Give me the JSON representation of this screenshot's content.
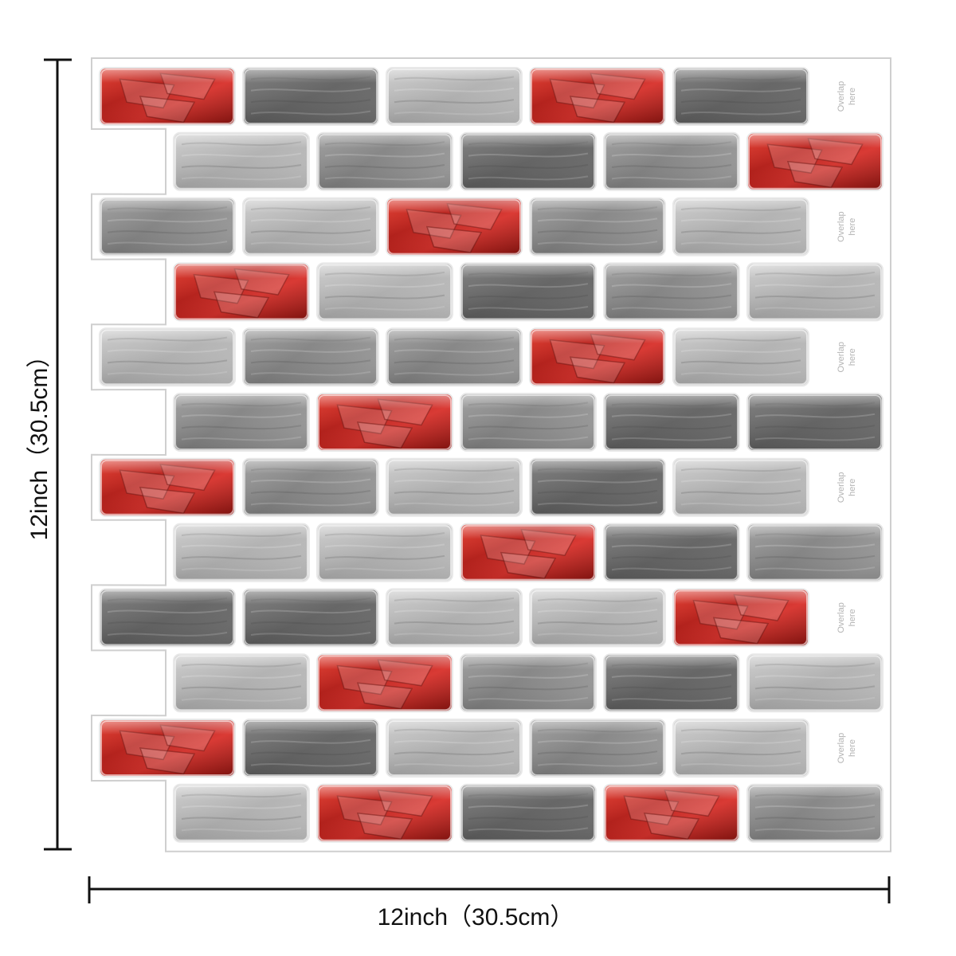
{
  "dimensions": {
    "height_label": "12inch（30.5cm）",
    "width_label": "12inch（30.5cm）"
  },
  "overlap_note": {
    "line1": "Overlap",
    "line2": "here"
  },
  "colors": {
    "red": "#c8261c",
    "red_dark": "#8e1410",
    "gray_dark": "#6d6d6d",
    "gray_mid": "#8e8e8e",
    "gray_light": "#b9b9b9",
    "sheet_outline": "#cfcfcf",
    "overlap_text": "#b4b4b4"
  },
  "tile_rows": [
    [
      "red",
      "dark",
      "light",
      "red",
      "dark"
    ],
    [
      "light",
      "mid",
      "dark",
      "mid",
      "red"
    ],
    [
      "mid",
      "light",
      "red",
      "mid",
      "light"
    ],
    [
      "red",
      "light",
      "dark",
      "mid",
      "light"
    ],
    [
      "light",
      "mid",
      "mid",
      "red",
      "light"
    ],
    [
      "mid",
      "red",
      "mid",
      "dark",
      "dark"
    ],
    [
      "red",
      "mid",
      "light",
      "dark",
      "light"
    ],
    [
      "light",
      "light",
      "red",
      "dark",
      "mid"
    ],
    [
      "dark",
      "dark",
      "light",
      "light",
      "red"
    ],
    [
      "light",
      "red",
      "mid",
      "dark",
      "light"
    ],
    [
      "red",
      "dark",
      "light",
      "mid",
      "light"
    ],
    [
      "light",
      "red",
      "dark",
      "red",
      "mid"
    ]
  ]
}
